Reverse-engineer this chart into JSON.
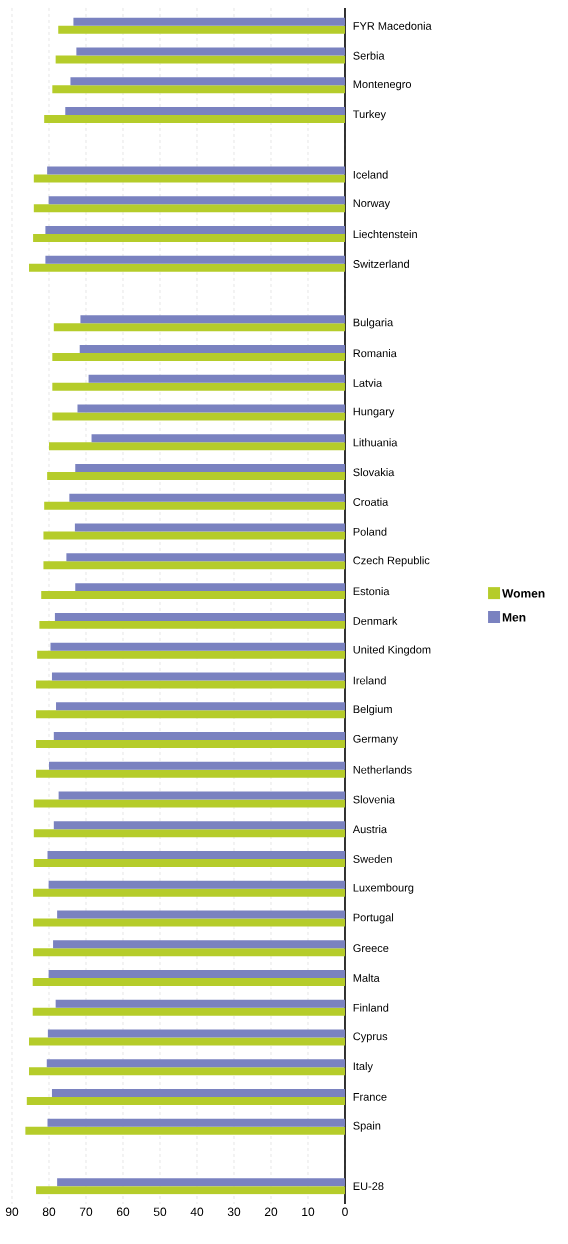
{
  "chart_data": {
    "type": "bar",
    "orientation": "horizontal",
    "categories": [
      "FYR Macedonia",
      "Serbia",
      "Montenegro",
      "Turkey",
      null,
      "Iceland",
      "Norway",
      "Liechtenstein",
      "Switzerland",
      null,
      "Bulgaria",
      "Romania",
      "Latvia",
      "Hungary",
      "Lithuania",
      "Slovakia",
      "Croatia",
      "Poland",
      "Czech Republic",
      "Estonia",
      "Denmark",
      "United Kingdom",
      "Ireland",
      "Belgium",
      "Germany",
      "Netherlands",
      "Slovenia",
      "Austria",
      "Sweden",
      "Luxembourg",
      "Portugal",
      "Greece",
      "Malta",
      "Finland",
      "Cyprus",
      "Italy",
      "France",
      "Spain",
      null,
      "EU-28"
    ],
    "series": [
      {
        "name": "Women",
        "color": "#b5cc2a",
        "values": [
          77.5,
          78.2,
          79.1,
          81.3,
          null,
          84.1,
          84.1,
          84.3,
          85.4,
          null,
          78.7,
          79.1,
          79.1,
          79.1,
          80.0,
          80.5,
          81.3,
          81.5,
          81.5,
          82.1,
          82.6,
          83.2,
          83.5,
          83.5,
          83.5,
          83.5,
          84.1,
          84.1,
          84.1,
          84.3,
          84.3,
          84.3,
          84.4,
          84.4,
          85.4,
          85.4,
          86.0,
          86.4,
          null,
          83.5
        ]
      },
      {
        "name": "Men",
        "color": "#7a82c0",
        "values": [
          73.4,
          72.6,
          74.2,
          75.6,
          null,
          80.5,
          80.1,
          81.0,
          81.0,
          null,
          71.5,
          71.7,
          69.3,
          72.3,
          68.5,
          72.9,
          74.5,
          73.0,
          75.3,
          72.9,
          78.4,
          79.6,
          79.2,
          78.1,
          78.7,
          80.0,
          77.4,
          78.7,
          80.4,
          80.1,
          77.8,
          78.9,
          80.1,
          78.2,
          80.3,
          80.6,
          79.2,
          80.4,
          null,
          77.8
        ]
      }
    ],
    "xlim": [
      90,
      0
    ],
    "xticks": [
      90,
      80,
      70,
      60,
      50,
      40,
      30,
      20,
      10,
      0
    ],
    "grid": "x",
    "legend": "right"
  }
}
